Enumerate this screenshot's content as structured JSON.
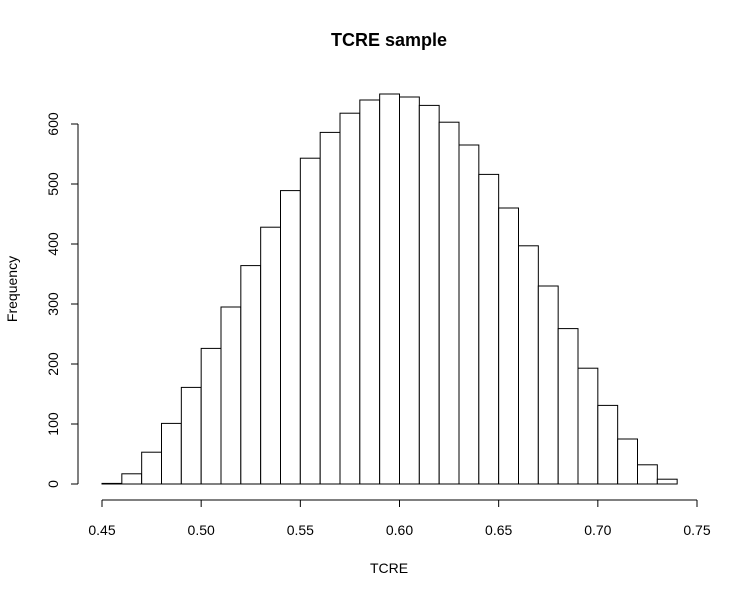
{
  "chart_data": {
    "type": "bar",
    "title": "TCRE sample",
    "xlabel": "TCRE",
    "ylabel": "Frequency",
    "xlim": [
      0.45,
      0.75
    ],
    "ylim": [
      0,
      650
    ],
    "x_ticks": [
      "0.45",
      "0.50",
      "0.55",
      "0.60",
      "0.65",
      "0.70",
      "0.75"
    ],
    "x_tick_values": [
      0.45,
      0.5,
      0.55,
      0.6,
      0.65,
      0.7,
      0.75
    ],
    "y_ticks": [
      "0",
      "100",
      "200",
      "300",
      "400",
      "500",
      "600"
    ],
    "y_tick_values": [
      0,
      100,
      200,
      300,
      400,
      500,
      600
    ],
    "bins": [
      {
        "start": 0.45,
        "end": 0.46,
        "value": 1
      },
      {
        "start": 0.46,
        "end": 0.47,
        "value": 17
      },
      {
        "start": 0.47,
        "end": 0.48,
        "value": 53
      },
      {
        "start": 0.48,
        "end": 0.49,
        "value": 101
      },
      {
        "start": 0.49,
        "end": 0.5,
        "value": 161
      },
      {
        "start": 0.5,
        "end": 0.51,
        "value": 226
      },
      {
        "start": 0.51,
        "end": 0.52,
        "value": 295
      },
      {
        "start": 0.52,
        "end": 0.53,
        "value": 364
      },
      {
        "start": 0.53,
        "end": 0.54,
        "value": 428
      },
      {
        "start": 0.54,
        "end": 0.55,
        "value": 489
      },
      {
        "start": 0.55,
        "end": 0.56,
        "value": 543
      },
      {
        "start": 0.56,
        "end": 0.57,
        "value": 586
      },
      {
        "start": 0.57,
        "end": 0.58,
        "value": 618
      },
      {
        "start": 0.58,
        "end": 0.59,
        "value": 640
      },
      {
        "start": 0.59,
        "end": 0.6,
        "value": 650
      },
      {
        "start": 0.6,
        "end": 0.61,
        "value": 645
      },
      {
        "start": 0.61,
        "end": 0.62,
        "value": 631
      },
      {
        "start": 0.62,
        "end": 0.63,
        "value": 603
      },
      {
        "start": 0.63,
        "end": 0.64,
        "value": 565
      },
      {
        "start": 0.64,
        "end": 0.65,
        "value": 516
      },
      {
        "start": 0.65,
        "end": 0.66,
        "value": 460
      },
      {
        "start": 0.66,
        "end": 0.67,
        "value": 397
      },
      {
        "start": 0.67,
        "end": 0.68,
        "value": 330
      },
      {
        "start": 0.68,
        "end": 0.69,
        "value": 259
      },
      {
        "start": 0.69,
        "end": 0.7,
        "value": 193
      },
      {
        "start": 0.7,
        "end": 0.71,
        "value": 131
      },
      {
        "start": 0.71,
        "end": 0.72,
        "value": 75
      },
      {
        "start": 0.72,
        "end": 0.73,
        "value": 32
      },
      {
        "start": 0.73,
        "end": 0.74,
        "value": 8
      }
    ],
    "grid": false,
    "legend": "none"
  }
}
